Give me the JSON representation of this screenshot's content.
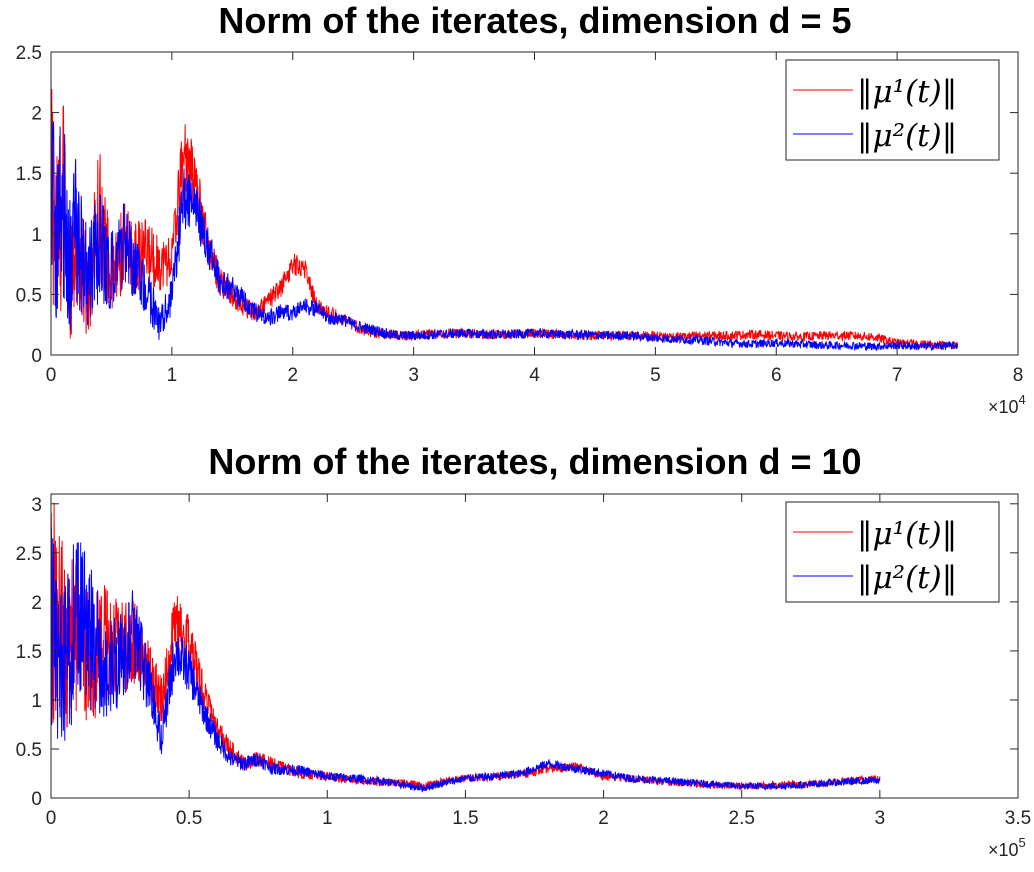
{
  "chart_data": [
    {
      "type": "line",
      "title": "Norm of the iterates, dimension d = 5",
      "xlabel": "",
      "ylabel": "",
      "xlim": [
        0,
        80000
      ],
      "ylim": [
        0,
        2.5
      ],
      "x_ticks": [
        "0",
        "1",
        "2",
        "3",
        "4",
        "5",
        "6",
        "7",
        "8"
      ],
      "y_ticks": [
        "0",
        "0.5",
        "1",
        "1.5",
        "2",
        "2.5"
      ],
      "x_exponent": {
        "base": "×10",
        "power": "4"
      },
      "grid": false,
      "legend_position": "top-right",
      "series": [
        {
          "name": "‖μ¹(t)‖",
          "color": "#ff0000",
          "noise": 0.05,
          "x": [
            0,
            500,
            1000,
            1500,
            2000,
            3000,
            4000,
            5000,
            6000,
            7000,
            8000,
            9000,
            10000,
            11000,
            12000,
            13000,
            14000,
            15000,
            16000,
            17000,
            18000,
            19000,
            20000,
            21000,
            22000,
            23000,
            24000,
            25000,
            26000,
            27000,
            28000,
            29000,
            30000,
            32000,
            34000,
            36000,
            38000,
            40000,
            42000,
            44000,
            46000,
            48000,
            50000,
            52000,
            54000,
            56000,
            58000,
            60000,
            62000,
            64000,
            66000,
            68000,
            70000,
            72000,
            75000
          ],
          "y": [
            1.5,
            1.0,
            1.3,
            0.6,
            1.0,
            0.5,
            1.2,
            0.6,
            0.9,
            0.8,
            0.85,
            0.75,
            0.8,
            1.7,
            1.4,
            0.9,
            0.6,
            0.5,
            0.4,
            0.35,
            0.45,
            0.55,
            0.75,
            0.72,
            0.4,
            0.35,
            0.3,
            0.25,
            0.2,
            0.18,
            0.17,
            0.16,
            0.16,
            0.18,
            0.18,
            0.17,
            0.17,
            0.18,
            0.17,
            0.16,
            0.16,
            0.16,
            0.16,
            0.15,
            0.16,
            0.16,
            0.17,
            0.16,
            0.15,
            0.16,
            0.16,
            0.15,
            0.1,
            0.09,
            0.08
          ]
        },
        {
          "name": "‖μ²(t)‖",
          "color": "#0000ff",
          "noise": 0.05,
          "x": [
            0,
            500,
            1000,
            1500,
            2000,
            3000,
            4000,
            5000,
            6000,
            7000,
            8000,
            9000,
            10000,
            11000,
            12000,
            13000,
            14000,
            15000,
            16000,
            17000,
            18000,
            19000,
            20000,
            21000,
            22000,
            23000,
            24000,
            25000,
            26000,
            27000,
            28000,
            29000,
            30000,
            32000,
            34000,
            36000,
            38000,
            40000,
            42000,
            44000,
            46000,
            48000,
            50000,
            52000,
            54000,
            56000,
            58000,
            60000,
            62000,
            64000,
            66000,
            68000,
            70000,
            72000,
            75000
          ],
          "y": [
            1.5,
            1.1,
            1.2,
            0.7,
            1.0,
            0.6,
            0.9,
            0.7,
            0.9,
            0.7,
            0.5,
            0.25,
            0.5,
            1.3,
            1.2,
            0.9,
            0.6,
            0.55,
            0.45,
            0.35,
            0.3,
            0.35,
            0.35,
            0.4,
            0.38,
            0.3,
            0.3,
            0.25,
            0.22,
            0.2,
            0.17,
            0.16,
            0.16,
            0.17,
            0.18,
            0.17,
            0.17,
            0.18,
            0.17,
            0.17,
            0.16,
            0.16,
            0.14,
            0.13,
            0.12,
            0.1,
            0.09,
            0.1,
            0.09,
            0.08,
            0.08,
            0.07,
            0.08,
            0.07,
            0.08
          ]
        }
      ]
    },
    {
      "type": "line",
      "title": "Norm of the iterates, dimension d = 10",
      "xlabel": "",
      "ylabel": "",
      "xlim": [
        0,
        350000
      ],
      "ylim": [
        0,
        3.1
      ],
      "x_ticks": [
        "0",
        "0.5",
        "1",
        "1.5",
        "2",
        "2.5",
        "3",
        "3.5"
      ],
      "y_ticks": [
        "0",
        "0.5",
        "1",
        "1.5",
        "2",
        "2.5",
        "3"
      ],
      "x_exponent": {
        "base": "×10",
        "power": "5"
      },
      "grid": false,
      "legend_position": "top-right",
      "series": [
        {
          "name": "‖μ¹(t)‖",
          "color": "#ff0000",
          "noise": 0.05,
          "x": [
            0,
            2000,
            5000,
            10000,
            15000,
            20000,
            25000,
            30000,
            35000,
            40000,
            45000,
            50000,
            55000,
            60000,
            65000,
            70000,
            75000,
            80000,
            90000,
            100000,
            110000,
            120000,
            130000,
            135000,
            140000,
            150000,
            160000,
            170000,
            180000,
            190000,
            200000,
            210000,
            220000,
            230000,
            240000,
            250000,
            260000,
            270000,
            280000,
            290000,
            300000
          ],
          "y": [
            2.2,
            1.8,
            1.6,
            1.7,
            1.4,
            1.6,
            1.5,
            1.6,
            1.3,
            1.0,
            1.8,
            1.6,
            1.1,
            0.7,
            0.5,
            0.35,
            0.4,
            0.35,
            0.25,
            0.22,
            0.18,
            0.16,
            0.15,
            0.12,
            0.16,
            0.2,
            0.22,
            0.24,
            0.3,
            0.32,
            0.22,
            0.2,
            0.17,
            0.15,
            0.13,
            0.12,
            0.13,
            0.14,
            0.15,
            0.18,
            0.19
          ]
        },
        {
          "name": "‖μ²(t)‖",
          "color": "#0000ff",
          "noise": 0.05,
          "x": [
            0,
            2000,
            5000,
            10000,
            15000,
            20000,
            25000,
            30000,
            35000,
            40000,
            45000,
            50000,
            55000,
            60000,
            65000,
            70000,
            75000,
            80000,
            90000,
            100000,
            110000,
            120000,
            130000,
            135000,
            140000,
            150000,
            160000,
            170000,
            180000,
            190000,
            200000,
            210000,
            220000,
            230000,
            240000,
            250000,
            260000,
            270000,
            280000,
            290000,
            300000
          ],
          "y": [
            1.8,
            1.4,
            1.5,
            1.8,
            1.6,
            1.3,
            1.4,
            1.7,
            1.2,
            0.6,
            1.5,
            1.3,
            0.9,
            0.6,
            0.4,
            0.35,
            0.4,
            0.3,
            0.28,
            0.22,
            0.2,
            0.17,
            0.12,
            0.1,
            0.14,
            0.2,
            0.22,
            0.25,
            0.35,
            0.3,
            0.25,
            0.2,
            0.18,
            0.16,
            0.14,
            0.12,
            0.12,
            0.13,
            0.15,
            0.17,
            0.18
          ]
        }
      ]
    }
  ]
}
